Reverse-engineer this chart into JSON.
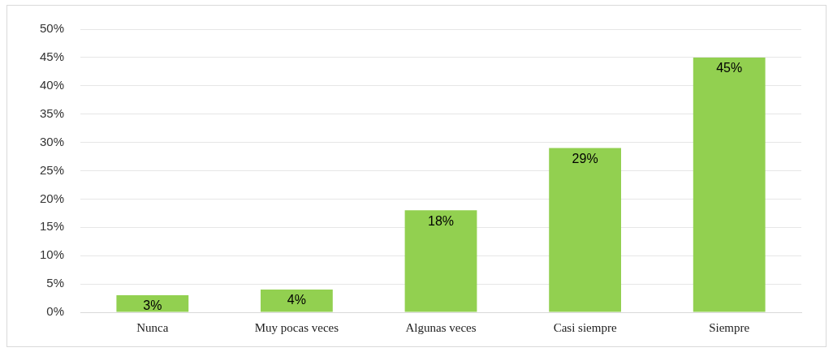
{
  "chart_data": {
    "type": "bar",
    "categories": [
      "Nunca",
      "Muy pocas veces",
      "Algunas veces",
      "Casi siempre",
      "Siempre"
    ],
    "values": [
      3,
      4,
      18,
      29,
      45
    ],
    "value_labels": [
      "3%",
      "4%",
      "18%",
      "29%",
      "45%"
    ],
    "color": "#92d050",
    "ylim": [
      0,
      50
    ],
    "yticks": [
      {
        "value": 0,
        "label": "0%"
      },
      {
        "value": 5,
        "label": "5%"
      },
      {
        "value": 10,
        "label": "10%"
      },
      {
        "value": 15,
        "label": "15%"
      },
      {
        "value": 20,
        "label": "20%"
      },
      {
        "value": 25,
        "label": "25%"
      },
      {
        "value": 30,
        "label": "30%"
      },
      {
        "value": 35,
        "label": "35%"
      },
      {
        "value": 40,
        "label": "40%"
      },
      {
        "value": 45,
        "label": "45%"
      },
      {
        "value": 50,
        "label": "50%"
      }
    ],
    "grid": "y",
    "legend": false
  }
}
